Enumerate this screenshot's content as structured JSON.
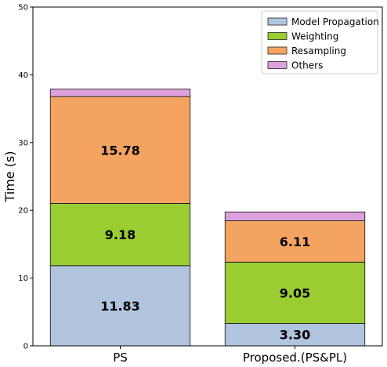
{
  "chart_data": {
    "type": "bar",
    "stacked": true,
    "categories": [
      "PS",
      "Proposed.(PS&PL)"
    ],
    "series": [
      {
        "name": "Model Propagation",
        "values": [
          11.83,
          3.3
        ],
        "labels": [
          "11.83",
          "3.30"
        ],
        "color": "#b0c4de"
      },
      {
        "name": "Weighting",
        "values": [
          9.18,
          9.05
        ],
        "labels": [
          "9.18",
          "9.05"
        ],
        "color": "#9acd32"
      },
      {
        "name": "Resampling",
        "values": [
          15.78,
          6.11
        ],
        "labels": [
          "15.78",
          "6.11"
        ],
        "color": "#f4a460"
      },
      {
        "name": "Others",
        "values": [
          1.1,
          1.3
        ],
        "labels": [
          "",
          ""
        ],
        "color": "#dda0dd"
      }
    ],
    "title": "",
    "xlabel": "",
    "ylabel": "Time (s)",
    "ylim": [
      0,
      50
    ],
    "yticks": [
      "0",
      "10",
      "20",
      "30",
      "40",
      "50"
    ],
    "grid": false,
    "legend": "top-right"
  }
}
